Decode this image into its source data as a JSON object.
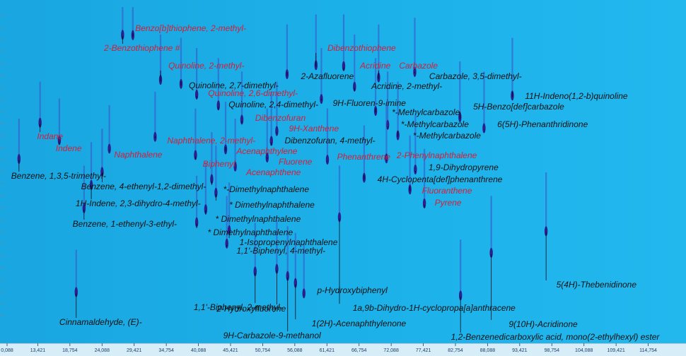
{
  "chart_data": {
    "type": "heatmap",
    "title": "",
    "xlabel": "",
    "ylabel": "",
    "x_ticks": [
      "0,088",
      "13,421",
      "18,754",
      "24,088",
      "29,421",
      "34,754",
      "40,088",
      "45,421",
      "50,754",
      "56,088",
      "61,421",
      "66,754",
      "72,088",
      "77,421",
      "82,754",
      "88,088",
      "93,421",
      "98,754",
      "104,088",
      "109,421",
      "114,754"
    ],
    "xlim": [
      8.088,
      120.088
    ],
    "colors": {
      "background": "#1ba9e3",
      "red_label": "#d1203a",
      "black_label": "#111111",
      "peak": "#2a1f8c"
    },
    "labels": [
      {
        "text": "Benzo[b]thiophene, 2-methyl-",
        "color": "red",
        "x": 29.6,
        "peak": [
          29.2,
          0.96
        ]
      },
      {
        "text": "2-Benzothiophene  #",
        "color": "red",
        "x": 24.4,
        "peak": [
          27.5,
          0.96
        ]
      },
      {
        "text": "Dibenzothiophene",
        "color": "red",
        "x": 61.5,
        "peak": [
          59.6,
          0.89
        ]
      },
      {
        "text": "Acridine",
        "color": "red",
        "x": 66.9,
        "peak": [
          64.2,
          0.89
        ]
      },
      {
        "text": "Carbazole",
        "color": "red",
        "x": 73.4,
        "peak": [
          70.0,
          0.86
        ]
      },
      {
        "text": "Quinoline, 2-methyl-",
        "color": "red",
        "x": 35.1,
        "peak": [
          33.8,
          0.83
        ]
      },
      {
        "text": "2-Azafluorene",
        "color": "black",
        "x": 57.1,
        "peak": [
          54.8,
          0.86
        ]
      },
      {
        "text": "Carbazole, 3,5-dimethyl-",
        "color": "black",
        "x": 78.4,
        "peak": [
          76.0,
          0.88
        ]
      },
      {
        "text": "Quinoline, 2,7-dimethyl-",
        "color": "black",
        "x": 38.5,
        "peak": [
          37.2,
          0.82
        ]
      },
      {
        "text": "Acridine, 2-methyl-",
        "color": "black",
        "x": 68.8,
        "peak": [
          66.0,
          0.83
        ]
      },
      {
        "text": "Quinoline, 2,6-dimethyl-",
        "color": "red",
        "x": 41.7,
        "peak": [
          39.8,
          0.79
        ]
      },
      {
        "text": "11H-Indeno(1,2-b)quinoline",
        "color": "black",
        "x": 94.3,
        "peak": [
          92.2,
          0.82
        ]
      },
      {
        "text": "9H-Fluoren-9-imine",
        "color": "black",
        "x": 62.4,
        "peak": [
          60.5,
          0.79
        ]
      },
      {
        "text": "Quinoline, 2,4-dimethyl-",
        "color": "black",
        "x": 45.1,
        "peak": [
          43.4,
          0.76
        ]
      },
      {
        "text": "*-Methylcarbazole",
        "color": "black",
        "x": 72.2,
        "peak": [
          69.5,
          0.76
        ]
      },
      {
        "text": "5H-Benzo[def]carbazole",
        "color": "black",
        "x": 85.7,
        "peak": [
          83.5,
          0.75
        ]
      },
      {
        "text": "Dibenzofuran",
        "color": "red",
        "x": 49.5,
        "peak": [
          47.3,
          0.72
        ]
      },
      {
        "text": "*-Methylcarbazole",
        "color": "black",
        "x": 73.7,
        "peak": [
          71.5,
          0.72
        ]
      },
      {
        "text": "6(5H)-Phenanthridinone",
        "color": "black",
        "x": 89.7,
        "peak": [
          87.5,
          0.72
        ]
      },
      {
        "text": "9H-Xanthene",
        "color": "red",
        "x": 55.1,
        "peak": [
          53.1,
          0.69
        ]
      },
      {
        "text": "*-Methylcarbazole",
        "color": "black",
        "x": 75.7,
        "peak": [
          73.2,
          0.69
        ]
      },
      {
        "text": "Indane",
        "color": "red",
        "x": 13.3,
        "peak": [
          13.8,
          0.69
        ]
      },
      {
        "text": "Dibenzofuran, 4-methyl-",
        "color": "black",
        "x": 54.4,
        "peak": [
          52.2,
          0.66
        ]
      },
      {
        "text": "Naphthalene, 2-methyl-",
        "color": "red",
        "x": 34.9,
        "peak": [
          32.9,
          0.66
        ]
      },
      {
        "text": "Indene",
        "color": "red",
        "x": 16.4,
        "peak": [
          17.0,
          0.64
        ]
      },
      {
        "text": "Acenaphthylene",
        "color": "red",
        "x": 46.4,
        "peak": [
          44.6,
          0.63
        ]
      },
      {
        "text": "Naphthalene",
        "color": "red",
        "x": 26.1,
        "peak": [
          25.3,
          0.62
        ]
      },
      {
        "text": "2-Phenylnaphthalene",
        "color": "red",
        "x": 73.0,
        "peak": [
          71.3,
          0.62
        ]
      },
      {
        "text": "Phenanthrene",
        "color": "red",
        "x": 63.1,
        "peak": [
          61.5,
          0.61
        ]
      },
      {
        "text": "Biphenyl",
        "color": "red",
        "x": 40.8,
        "peak": [
          39.6,
          0.61
        ]
      },
      {
        "text": "Fluorene",
        "color": "red",
        "x": 53.4,
        "peak": [
          51.5,
          0.61
        ]
      },
      {
        "text": "1,9-Dihydropyrene",
        "color": "black",
        "x": 78.3,
        "peak": [
          76.1,
          0.59
        ]
      },
      {
        "text": "Acenaphthene",
        "color": "red",
        "x": 48.0,
        "peak": [
          46.2,
          0.58
        ]
      },
      {
        "text": "Benzene, 1,3,5-trimethyl-",
        "color": "black",
        "x": 9.0,
        "peak": [
          10.3,
          0.58
        ]
      },
      {
        "text": "4H-Cyclopenta[def]phenanthrene",
        "color": "black",
        "x": 69.8,
        "peak": [
          67.6,
          0.56
        ]
      },
      {
        "text": "Benzene, 4-ethenyl-1,2-dimethyl-",
        "color": "black",
        "x": 20.6,
        "peak": [
          24.1,
          0.55
        ]
      },
      {
        "text": "*-Dimethylnaphthalene",
        "color": "black",
        "x": 44.2,
        "peak": [
          42.3,
          0.54
        ]
      },
      {
        "text": "Fluoranthene",
        "color": "red",
        "x": 77.2,
        "peak": [
          75.2,
          0.53
        ]
      },
      {
        "text": "1H-Indene, 2,3-dihydro-4-methyl-",
        "color": "black",
        "x": 19.7,
        "peak": [
          22.3,
          0.51
        ]
      },
      {
        "text": "* Dimethylnaphthalene",
        "color": "black",
        "x": 45.2,
        "peak": [
          43.0,
          0.5
        ]
      },
      {
        "text": "Pyrene",
        "color": "red",
        "x": 79.3,
        "peak": [
          77.6,
          0.49
        ]
      },
      {
        "text": "* Dimethylnaphthalene",
        "color": "black",
        "x": 42.9,
        "peak": [
          41.3,
          0.45
        ]
      },
      {
        "text": "Benzene, 1-ethenyl-3-ethyl-",
        "color": "black",
        "x": 19.2,
        "peak": [
          21.1,
          0.44
        ]
      },
      {
        "text": "* Dimethylnaphthalene",
        "color": "black",
        "x": 41.6,
        "peak": [
          39.8,
          0.41
        ]
      },
      {
        "text": "1-Isopropenylnaphthalene",
        "color": "black",
        "x": 46.9,
        "peak": [
          45.2,
          0.39
        ]
      },
      {
        "text": "1,1'-Biphenyl, 4-methyl-",
        "color": "black",
        "x": 46.4,
        "peak": [
          44.8,
          0.35
        ]
      },
      {
        "text": "p-Hydroxybiphenyl",
        "color": "black",
        "x": 59.8,
        "peak": [
          57.6,
          0.21
        ]
      },
      {
        "text": "5(4H)-Thebenidinone",
        "color": "black",
        "x": 99.5,
        "peak": [
          97.8,
          0.42
        ]
      },
      {
        "text": "1,1'-Biphenyl, 2-methyl-",
        "color": "black",
        "x": 39.3,
        "peak": [
          49.5,
          0.27
        ]
      },
      {
        "text": "1a,9b-Dihydro-1H-cyclopropa[a]anthracene",
        "color": "black",
        "x": 65.7,
        "peak": [
          63.5,
          0.44
        ]
      },
      {
        "text": "2-Hydroxyfluorene",
        "color": "black",
        "x": 43.1,
        "peak": [
          53.1,
          0.28
        ]
      },
      {
        "text": "Cinnamaldehyde, (E)-",
        "color": "black",
        "x": 17.0,
        "peak": [
          19.8,
          0.19
        ]
      },
      {
        "text": "1(2H)-Acenaphthylenone",
        "color": "black",
        "x": 58.9,
        "peak": [
          56.2,
          0.24
        ]
      },
      {
        "text": "9(10H)-Acridinone",
        "color": "black",
        "x": 91.6,
        "peak": [
          88.7,
          0.35
        ]
      },
      {
        "text": "9H-Carbazole-9-methanol",
        "color": "black",
        "x": 44.2,
        "peak": [
          54.9,
          0.26
        ]
      },
      {
        "text": "1,2-Benzenedicarboxylic acid, mono(2-ethylhexyl) ester",
        "color": "black",
        "x": 82.0,
        "peak": [
          83.6,
          0.22
        ]
      }
    ]
  }
}
